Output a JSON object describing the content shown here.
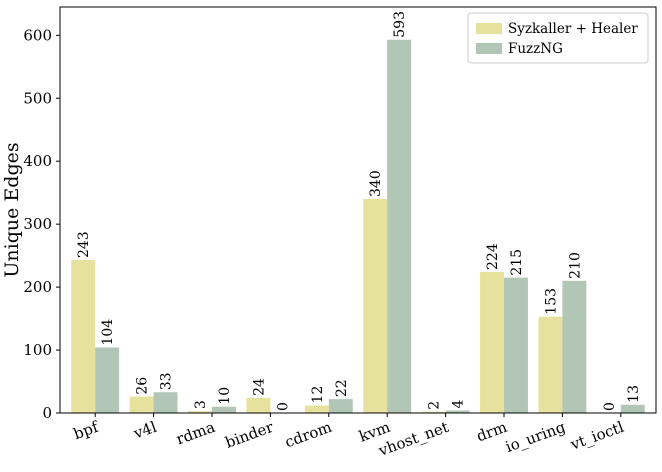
{
  "chart_data": {
    "type": "bar",
    "categories": [
      "bpf",
      "v4l",
      "rdma",
      "binder",
      "cdrom",
      "kvm",
      "vhost_net",
      "drm",
      "io_uring",
      "vt_ioctl"
    ],
    "series": [
      {
        "name": "Syzkaller + Healer",
        "color": "#e7e19e",
        "values": [
          243,
          26,
          3,
          24,
          12,
          340,
          2,
          224,
          153,
          0
        ]
      },
      {
        "name": "FuzzNG",
        "color": "#b1c6b4",
        "values": [
          104,
          33,
          10,
          0,
          22,
          593,
          4,
          215,
          210,
          13
        ]
      }
    ],
    "ylabel": "Unique Edges",
    "xlabel": "",
    "title": "",
    "ylim": [
      0,
      645
    ],
    "yticks": [
      0,
      100,
      200,
      300,
      400,
      500,
      600
    ],
    "legend_position": "top-right",
    "grid": false
  }
}
